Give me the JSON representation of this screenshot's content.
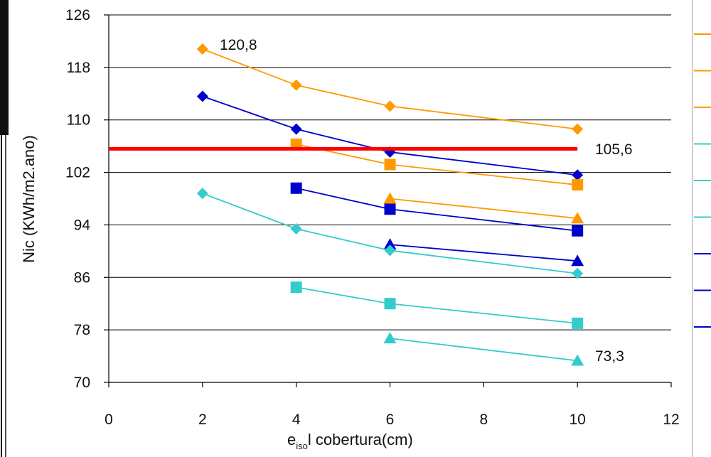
{
  "chart_data": {
    "type": "line",
    "xlabel_main": "e",
    "xlabel_sub": "iso",
    "xlabel_rest": "l  cobertura(cm)",
    "ylabel": "Nic (KWh/m2.ano)",
    "xlim": [
      0,
      12
    ],
    "ylim": [
      70,
      126
    ],
    "x_ticks": [
      "0",
      "2",
      "4",
      "6",
      "8",
      "10",
      "12"
    ],
    "y_ticks": [
      "70",
      "78",
      "86",
      "94",
      "102",
      "110",
      "118",
      "126"
    ],
    "grid": "horizontal",
    "reference_line": {
      "y": 105.6,
      "color": "#ff0000"
    },
    "series": [
      {
        "color": "#ff9900",
        "marker": "diamond",
        "x": [
          2,
          4,
          6,
          10
        ],
        "y": [
          120.8,
          115.3,
          112.1,
          108.6
        ]
      },
      {
        "color": "#0000cc",
        "marker": "diamond",
        "x": [
          2,
          4,
          6,
          10
        ],
        "y": [
          113.6,
          108.6,
          105.1,
          101.6
        ]
      },
      {
        "color": "#ff9900",
        "marker": "square",
        "x": [
          4,
          6,
          10
        ],
        "y": [
          106.3,
          103.2,
          100.1
        ]
      },
      {
        "color": "#0000cc",
        "marker": "square",
        "x": [
          4,
          6,
          10
        ],
        "y": [
          99.6,
          96.4,
          93.1
        ]
      },
      {
        "color": "#ff9900",
        "marker": "triangle",
        "x": [
          6,
          10
        ],
        "y": [
          98.0,
          95.0
        ]
      },
      {
        "color": "#0000cc",
        "marker": "triangle",
        "x": [
          6,
          10
        ],
        "y": [
          91.0,
          88.5
        ]
      },
      {
        "color": "#33cccc",
        "marker": "diamond",
        "x": [
          2,
          4,
          6,
          10
        ],
        "y": [
          98.8,
          93.4,
          90.1,
          86.6
        ]
      },
      {
        "color": "#33cccc",
        "marker": "square",
        "x": [
          4,
          6,
          10
        ],
        "y": [
          84.5,
          82.0,
          79.0
        ]
      },
      {
        "color": "#33cccc",
        "marker": "triangle",
        "x": [
          6,
          10
        ],
        "y": [
          76.7,
          73.3
        ]
      }
    ],
    "annotations": [
      "120,8",
      "105,6",
      "73,3"
    ]
  }
}
